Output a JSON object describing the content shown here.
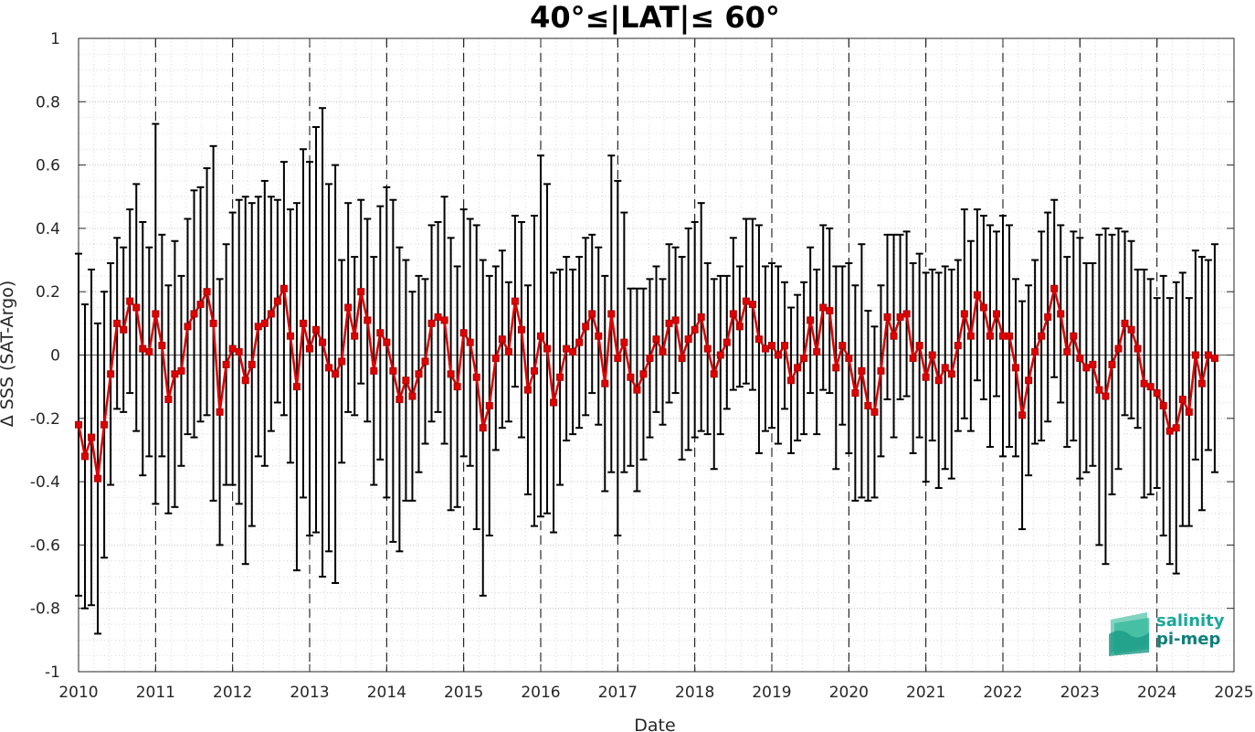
{
  "chart_data": {
    "type": "line",
    "title": "40°≤|LAT|≤ 60°",
    "xlabel": "Date",
    "ylabel": "Δ SSS (SAT-Argo)",
    "xlim": [
      "2010-01",
      "2025-01"
    ],
    "ylim": [
      -1,
      1
    ],
    "xticks": [
      "2010",
      "2011",
      "2012",
      "2013",
      "2014",
      "2015",
      "2016",
      "2017",
      "2018",
      "2019",
      "2020",
      "2021",
      "2022",
      "2023",
      "2024",
      "2025"
    ],
    "yticks": [
      "-1",
      "-0.8",
      "-0.6",
      "-0.4",
      "-0.2",
      "0",
      "0.2",
      "0.4",
      "0.6",
      "0.8",
      "1"
    ],
    "grid": "on (dotted, major and minor)",
    "year_boundaries": "dashed vertical lines at each January",
    "zero_line": true,
    "series": [
      {
        "marker": "square",
        "color": "#e00000",
        "errorbar_color": "#000000",
        "x": [
          "2010-01",
          "2010-02",
          "2010-03",
          "2010-04",
          "2010-05",
          "2010-06",
          "2010-07",
          "2010-08",
          "2010-09",
          "2010-10",
          "2010-11",
          "2010-12",
          "2011-01",
          "2011-02",
          "2011-03",
          "2011-04",
          "2011-05",
          "2011-06",
          "2011-07",
          "2011-08",
          "2011-09",
          "2011-10",
          "2011-11",
          "2011-12",
          "2012-01",
          "2012-02",
          "2012-03",
          "2012-04",
          "2012-05",
          "2012-06",
          "2012-07",
          "2012-08",
          "2012-09",
          "2012-10",
          "2012-11",
          "2012-12",
          "2013-01",
          "2013-02",
          "2013-03",
          "2013-04",
          "2013-05",
          "2013-06",
          "2013-07",
          "2013-08",
          "2013-09",
          "2013-10",
          "2013-11",
          "2013-12",
          "2014-01",
          "2014-02",
          "2014-03",
          "2014-04",
          "2014-05",
          "2014-06",
          "2014-07",
          "2014-08",
          "2014-09",
          "2014-10",
          "2014-11",
          "2014-12",
          "2015-01",
          "2015-02",
          "2015-03",
          "2015-04",
          "2015-05",
          "2015-06",
          "2015-07",
          "2015-08",
          "2015-09",
          "2015-10",
          "2015-11",
          "2015-12",
          "2016-01",
          "2016-02",
          "2016-03",
          "2016-04",
          "2016-05",
          "2016-06",
          "2016-07",
          "2016-08",
          "2016-09",
          "2016-10",
          "2016-11",
          "2016-12",
          "2017-01",
          "2017-02",
          "2017-03",
          "2017-04",
          "2017-05",
          "2017-06",
          "2017-07",
          "2017-08",
          "2017-09",
          "2017-10",
          "2017-11",
          "2017-12",
          "2018-01",
          "2018-02",
          "2018-03",
          "2018-04",
          "2018-05",
          "2018-06",
          "2018-07",
          "2018-08",
          "2018-09",
          "2018-10",
          "2018-11",
          "2018-12",
          "2019-01",
          "2019-02",
          "2019-03",
          "2019-04",
          "2019-05",
          "2019-06",
          "2019-07",
          "2019-08",
          "2019-09",
          "2019-10",
          "2019-11",
          "2019-12",
          "2020-01",
          "2020-02",
          "2020-03",
          "2020-04",
          "2020-05",
          "2020-06",
          "2020-07",
          "2020-08",
          "2020-09",
          "2020-10",
          "2020-11",
          "2020-12",
          "2021-01",
          "2021-02",
          "2021-03",
          "2021-04",
          "2021-05",
          "2021-06",
          "2021-07",
          "2021-08",
          "2021-09",
          "2021-10",
          "2021-11",
          "2021-12",
          "2022-01",
          "2022-02",
          "2022-03",
          "2022-04",
          "2022-05",
          "2022-06",
          "2022-07",
          "2022-08",
          "2022-09",
          "2022-10",
          "2022-11",
          "2022-12",
          "2023-01",
          "2023-02",
          "2023-03",
          "2023-04",
          "2023-05",
          "2023-06",
          "2023-07",
          "2023-08",
          "2023-09",
          "2023-10",
          "2023-11",
          "2023-12",
          "2024-01",
          "2024-02",
          "2024-03",
          "2024-04",
          "2024-05",
          "2024-06",
          "2024-07",
          "2024-08",
          "2024-09",
          "2024-10"
        ],
        "y": [
          -0.22,
          -0.32,
          -0.26,
          -0.39,
          -0.22,
          -0.06,
          0.1,
          0.08,
          0.17,
          0.15,
          0.02,
          0.01,
          0.13,
          0.03,
          -0.14,
          -0.06,
          -0.05,
          0.09,
          0.13,
          0.16,
          0.2,
          0.1,
          -0.18,
          -0.03,
          0.02,
          0.01,
          -0.08,
          -0.03,
          0.09,
          0.1,
          0.13,
          0.17,
          0.21,
          0.06,
          -0.1,
          0.1,
          0.02,
          0.08,
          0.04,
          -0.04,
          -0.06,
          -0.02,
          0.15,
          0.06,
          0.2,
          0.11,
          -0.05,
          0.07,
          0.04,
          -0.05,
          -0.14,
          -0.08,
          -0.13,
          -0.06,
          -0.02,
          0.1,
          0.12,
          0.11,
          -0.06,
          -0.1,
          0.07,
          0.04,
          -0.07,
          -0.23,
          -0.16,
          -0.01,
          0.05,
          0.01,
          0.17,
          0.08,
          -0.11,
          -0.05,
          0.06,
          0.02,
          -0.15,
          -0.07,
          0.02,
          0.01,
          0.04,
          0.09,
          0.13,
          0.06,
          -0.09,
          0.13,
          -0.01,
          0.04,
          -0.07,
          -0.11,
          -0.06,
          -0.01,
          0.05,
          0.01,
          0.1,
          0.11,
          -0.01,
          0.05,
          0.08,
          0.12,
          0.02,
          -0.06,
          0.0,
          0.04,
          0.13,
          0.09,
          0.17,
          0.16,
          0.05,
          0.02,
          0.03,
          0.0,
          0.03,
          -0.08,
          -0.04,
          -0.01,
          0.11,
          0.01,
          0.15,
          0.14,
          -0.04,
          0.03,
          -0.01,
          -0.12,
          -0.05,
          -0.16,
          -0.18,
          -0.05,
          0.12,
          0.06,
          0.12,
          0.13,
          -0.01,
          0.03,
          -0.07,
          0.0,
          -0.08,
          -0.04,
          -0.06,
          0.03,
          0.13,
          0.06,
          0.19,
          0.15,
          0.06,
          0.13,
          0.06,
          0.06,
          -0.04,
          -0.19,
          -0.08,
          0.01,
          0.06,
          0.12,
          0.21,
          0.13,
          0.01,
          0.06,
          -0.01,
          -0.04,
          -0.03,
          -0.11,
          -0.13,
          -0.03,
          0.02,
          0.1,
          0.08,
          0.02,
          -0.09,
          -0.1,
          -0.12,
          -0.16,
          -0.24,
          -0.23,
          -0.14,
          -0.18,
          0.0,
          -0.09,
          0.0,
          -0.01
        ],
        "err": [
          0.54,
          0.48,
          0.53,
          0.49,
          0.42,
          0.35,
          0.27,
          0.26,
          0.29,
          0.39,
          0.4,
          0.33,
          0.6,
          0.35,
          0.36,
          0.42,
          0.3,
          0.34,
          0.39,
          0.37,
          0.39,
          0.56,
          0.42,
          0.38,
          0.43,
          0.48,
          0.58,
          0.51,
          0.41,
          0.45,
          0.37,
          0.32,
          0.4,
          0.4,
          0.58,
          0.55,
          0.59,
          0.64,
          0.74,
          0.58,
          0.66,
          0.32,
          0.33,
          0.25,
          0.29,
          0.32,
          0.36,
          0.4,
          0.49,
          0.54,
          0.48,
          0.38,
          0.33,
          0.31,
          0.26,
          0.31,
          0.3,
          0.39,
          0.43,
          0.38,
          0.39,
          0.39,
          0.48,
          0.53,
          0.41,
          0.29,
          0.28,
          0.22,
          0.27,
          0.34,
          0.33,
          0.49,
          0.57,
          0.52,
          0.41,
          0.34,
          0.29,
          0.26,
          0.27,
          0.28,
          0.25,
          0.28,
          0.34,
          0.5,
          0.56,
          0.41,
          0.28,
          0.32,
          0.27,
          0.25,
          0.23,
          0.23,
          0.25,
          0.23,
          0.32,
          0.35,
          0.34,
          0.36,
          0.27,
          0.3,
          0.25,
          0.21,
          0.24,
          0.19,
          0.26,
          0.27,
          0.36,
          0.26,
          0.26,
          0.28,
          0.2,
          0.23,
          0.23,
          0.24,
          0.23,
          0.26,
          0.26,
          0.26,
          0.32,
          0.25,
          0.3,
          0.34,
          0.4,
          0.3,
          0.27,
          0.27,
          0.26,
          0.32,
          0.26,
          0.26,
          0.3,
          0.29,
          0.33,
          0.27,
          0.34,
          0.32,
          0.33,
          0.27,
          0.33,
          0.3,
          0.27,
          0.29,
          0.35,
          0.26,
          0.38,
          0.35,
          0.28,
          0.36,
          0.3,
          0.29,
          0.33,
          0.33,
          0.28,
          0.28,
          0.3,
          0.33,
          0.38,
          0.33,
          0.32,
          0.49,
          0.53,
          0.41,
          0.38,
          0.29,
          0.28,
          0.25,
          0.36,
          0.34,
          0.3,
          0.41,
          0.42,
          0.46,
          0.4,
          0.36,
          0.33,
          0.4,
          0.3,
          0.36
        ]
      }
    ]
  },
  "logo": {
    "line1": "salinity",
    "line2": "pi-mep",
    "color1": "#1aa89a",
    "color2": "#0e7f7a"
  }
}
